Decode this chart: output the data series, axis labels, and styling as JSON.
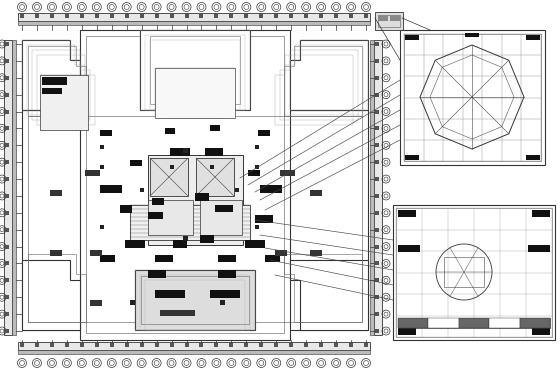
{
  "bg_color": "#ffffff",
  "plan_bg": "#ffffff",
  "wall_color": "#333333",
  "light_wall": "#888888",
  "dark_fill": "#111111",
  "gray_fill": "#aaaaaa",
  "pipe_bg": "#cccccc",
  "figsize": [
    5.6,
    3.7
  ],
  "dpi": 100
}
